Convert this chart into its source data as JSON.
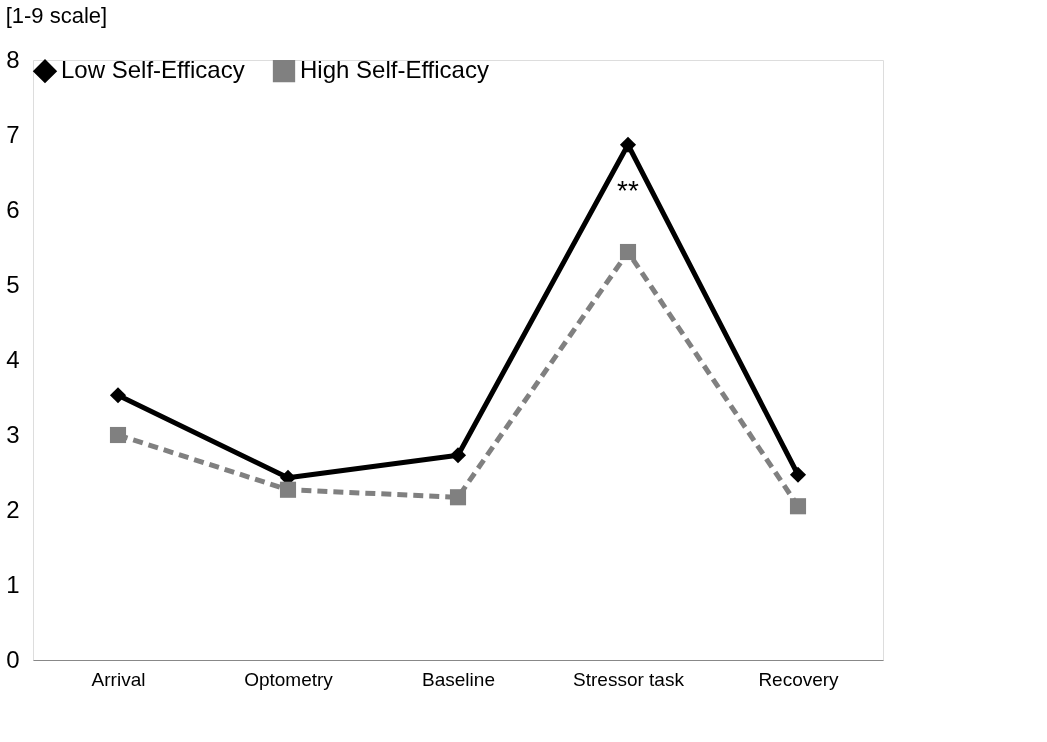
{
  "chart_data": {
    "type": "line",
    "ylabel": "[1-9 scale]",
    "categories": [
      "Arrival",
      "Optometry",
      "Baseline",
      "Stressor task",
      "Recovery"
    ],
    "series": [
      {
        "name": "Low Self-Efficacy",
        "color": "#000000",
        "values": [
          3.53,
          2.43,
          2.73,
          6.87,
          2.47
        ],
        "marker": "diamond",
        "line_style": "solid"
      },
      {
        "name": "High Self-Efficacy",
        "color": "#808080",
        "values": [
          3.0,
          2.27,
          2.17,
          5.44,
          2.05
        ],
        "marker": "square",
        "line_style": "dashed"
      }
    ],
    "ylim": [
      0,
      8
    ],
    "yticks": [
      0,
      1,
      2,
      3,
      4,
      5,
      6,
      7,
      8
    ],
    "grid": false,
    "legend": "top",
    "annotations": [
      "**"
    ]
  }
}
